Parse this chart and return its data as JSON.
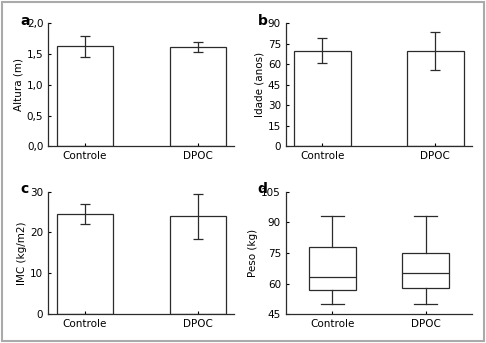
{
  "subplot_a": {
    "label": "a",
    "ylabel": "Altura (m)",
    "categories": [
      "Controle",
      "DPOC"
    ],
    "values": [
      1.63,
      1.62
    ],
    "errors": [
      0.17,
      0.08
    ],
    "ylim": [
      0.0,
      2.0
    ],
    "yticks": [
      0.0,
      0.5,
      1.0,
      1.5,
      2.0
    ],
    "ytick_labels": [
      "0,0",
      "0,5",
      "1,0",
      "1,5",
      "2,0"
    ]
  },
  "subplot_b": {
    "label": "b",
    "ylabel": "Idade (anos)",
    "categories": [
      "Controle",
      "DPOC"
    ],
    "values": [
      70,
      70
    ],
    "errors": [
      9,
      14
    ],
    "ylim": [
      0,
      90
    ],
    "yticks": [
      0,
      15,
      30,
      45,
      60,
      75,
      90
    ],
    "ytick_labels": [
      "0",
      "15",
      "30",
      "45",
      "60",
      "75",
      "90"
    ]
  },
  "subplot_c": {
    "label": "c",
    "ylabel": "IMC (kg/m2)",
    "categories": [
      "Controle",
      "DPOC"
    ],
    "values": [
      24.5,
      24.0
    ],
    "errors": [
      2.5,
      5.5
    ],
    "ylim": [
      0,
      30
    ],
    "yticks": [
      0,
      10,
      20,
      30
    ],
    "ytick_labels": [
      "0",
      "10",
      "20",
      "30"
    ]
  },
  "subplot_d": {
    "label": "d",
    "ylabel": "Peso (kg)",
    "categories": [
      "Controle",
      "DPOC"
    ],
    "box_data": {
      "Controle": {
        "median": 63,
        "q1": 57,
        "q3": 78,
        "whislo": 50,
        "whishi": 93
      },
      "DPOC": {
        "median": 65,
        "q1": 58,
        "q3": 75,
        "whislo": 50,
        "whishi": 93
      }
    },
    "ylim": [
      45,
      105
    ],
    "yticks": [
      45,
      60,
      75,
      90,
      105
    ],
    "ytick_labels": [
      "45",
      "60",
      "75",
      "90",
      "105"
    ]
  },
  "bar_color": "#ffffff",
  "bar_edgecolor": "#2b2b2b",
  "bar_width": 0.5,
  "bg_color": "#ffffff",
  "outer_bg": "#ffffff",
  "border_color": "#aaaaaa"
}
